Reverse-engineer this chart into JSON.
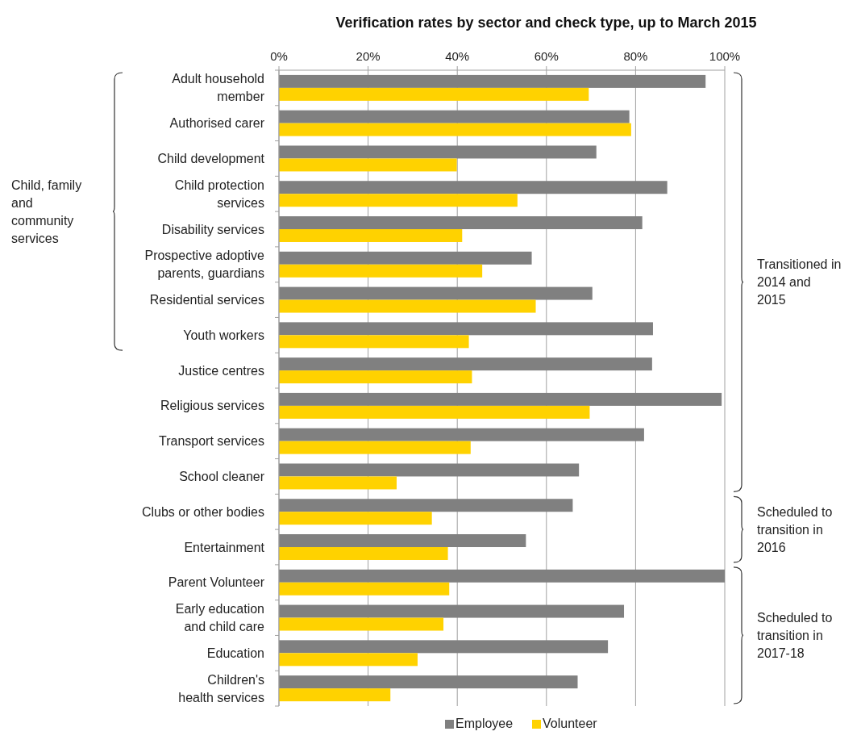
{
  "chart_data": {
    "type": "bar",
    "orientation": "horizontal",
    "title": "Verification rates by sector and check type, up to March 2015",
    "categories": [
      "Adult household\nmember",
      "Authorised carer",
      "Child development",
      "Child protection\nservices",
      "Disability services",
      "Prospective adoptive\nparents, guardians",
      "Residential services",
      "Youth workers",
      "Justice centres",
      "Religious services",
      "Transport services",
      "School cleaner",
      "Clubs or other bodies",
      "Entertainment",
      "Parent Volunteer",
      "Early education\nand child care",
      "Education",
      "Children's\nhealth services"
    ],
    "series": [
      {
        "name": "Employee",
        "color": "#808080",
        "values": [
          95.7,
          78.6,
          71.2,
          87.1,
          81.5,
          56.7,
          70.3,
          83.9,
          83.7,
          99.3,
          81.9,
          67.3,
          65.9,
          55.4,
          100,
          77.4,
          73.8,
          67.0
        ]
      },
      {
        "name": "Volunteer",
        "color": "#ffd200",
        "values": [
          69.5,
          79.0,
          39.9,
          53.5,
          41.1,
          45.6,
          57.6,
          42.6,
          43.3,
          69.7,
          43.0,
          26.4,
          34.3,
          37.9,
          38.2,
          36.9,
          31.1,
          25.0
        ]
      }
    ],
    "xlim": [
      0,
      100
    ],
    "xticks": [
      {
        "value": 0,
        "label": "0%"
      },
      {
        "value": 20,
        "label": "20%"
      },
      {
        "value": 40,
        "label": "40%"
      },
      {
        "value": 60,
        "label": "60%"
      },
      {
        "value": 80,
        "label": "80%"
      },
      {
        "value": 100,
        "label": "100%"
      }
    ],
    "grid": "x",
    "legend": "bottom",
    "annotations": [
      "Child, family\nand\ncommunity\nservices",
      "Transitioned in\n2014 and\n2015",
      "Scheduled to\ntransition in\n2016",
      "Scheduled to\ntransition in\n2017-18"
    ]
  }
}
